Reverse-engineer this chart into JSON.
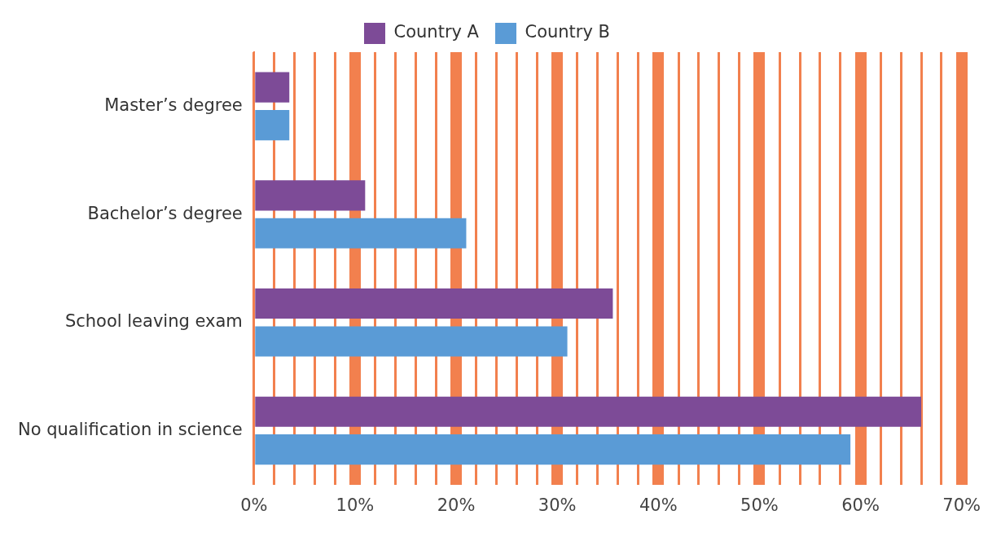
{
  "chart_data": {
    "type": "bar",
    "orientation": "horizontal",
    "categories": [
      "Master’s degree",
      "Bachelor’s degree",
      "School leaving exam",
      "No qualification in science"
    ],
    "series": [
      {
        "name": "Country A",
        "color": "#7d4b97",
        "values": [
          3.5,
          11,
          35.5,
          66
        ]
      },
      {
        "name": "Country B",
        "color": "#5a9bd6",
        "values": [
          3.5,
          21,
          31,
          59
        ]
      }
    ],
    "xlim": [
      0,
      70
    ],
    "xticks": [
      {
        "value": 0,
        "label": "0%"
      },
      {
        "value": 2,
        "label": null
      },
      {
        "value": 4,
        "label": null
      },
      {
        "value": 6,
        "label": null
      },
      {
        "value": 8,
        "label": null
      },
      {
        "value": 10,
        "label": "10%"
      },
      {
        "value": 12,
        "label": null
      },
      {
        "value": 14,
        "label": null
      },
      {
        "value": 16,
        "label": null
      },
      {
        "value": 18,
        "label": null
      },
      {
        "value": 20,
        "label": "20%"
      },
      {
        "value": 22,
        "label": null
      },
      {
        "value": 24,
        "label": null
      },
      {
        "value": 26,
        "label": null
      },
      {
        "value": 28,
        "label": null
      },
      {
        "value": 30,
        "label": "30%"
      },
      {
        "value": 32,
        "label": null
      },
      {
        "value": 34,
        "label": null
      },
      {
        "value": 36,
        "label": null
      },
      {
        "value": 38,
        "label": null
      },
      {
        "value": 40,
        "label": "40%"
      },
      {
        "value": 42,
        "label": null
      },
      {
        "value": 44,
        "label": null
      },
      {
        "value": 46,
        "label": null
      },
      {
        "value": 48,
        "label": null
      },
      {
        "value": 50,
        "label": "50%"
      },
      {
        "value": 52,
        "label": null
      },
      {
        "value": 54,
        "label": null
      },
      {
        "value": 56,
        "label": null
      },
      {
        "value": 58,
        "label": null
      },
      {
        "value": 60,
        "label": "60%"
      },
      {
        "value": 62,
        "label": null
      },
      {
        "value": 64,
        "label": null
      },
      {
        "value": 66,
        "label": null
      },
      {
        "value": 68,
        "label": null
      },
      {
        "value": 70,
        "label": "70%"
      }
    ],
    "grid": "x",
    "legend": "top"
  }
}
